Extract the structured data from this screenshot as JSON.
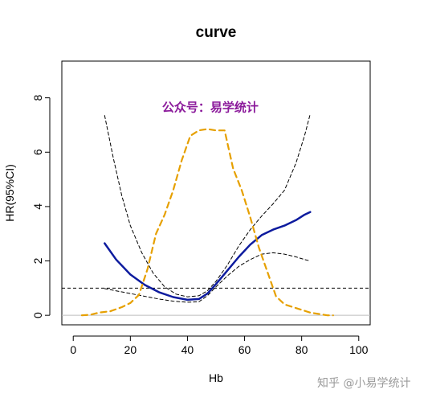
{
  "chart_data": {
    "type": "line",
    "title": "curve",
    "xlabel": "Hb",
    "ylabel": "HR(95%CI)",
    "xlim": [
      -4,
      104
    ],
    "ylim": [
      -0.35,
      9.35
    ],
    "x_ticks": [
      0,
      20,
      40,
      60,
      80,
      100
    ],
    "y_ticks": [
      0,
      2,
      4,
      6,
      8
    ],
    "reference_line": {
      "y": 1,
      "style": "dashed",
      "color": "#000000"
    },
    "baseline": {
      "y": 0,
      "color": "#bebebe"
    },
    "annotation": {
      "text": "公众号：易学统计",
      "color": "#8b1a9b",
      "x": 48,
      "y": 7.5
    },
    "series": [
      {
        "style": "solid",
        "color": "#0d1b9e",
        "width": 2.5,
        "points": [
          [
            11,
            2.65
          ],
          [
            15,
            2.05
          ],
          [
            20,
            1.5
          ],
          [
            25,
            1.12
          ],
          [
            30,
            0.85
          ],
          [
            35,
            0.67
          ],
          [
            40,
            0.57
          ],
          [
            44,
            0.6
          ],
          [
            47,
            0.8
          ],
          [
            50,
            1.15
          ],
          [
            54,
            1.65
          ],
          [
            58,
            2.15
          ],
          [
            62,
            2.6
          ],
          [
            66,
            2.95
          ],
          [
            70,
            3.15
          ],
          [
            74,
            3.3
          ],
          [
            78,
            3.5
          ],
          [
            81,
            3.7
          ],
          [
            83,
            3.8
          ]
        ]
      },
      {
        "style": "dashed",
        "color": "#000000",
        "width": 1,
        "points": [
          [
            11,
            7.35
          ],
          [
            14,
            5.8
          ],
          [
            17,
            4.4
          ],
          [
            20,
            3.3
          ],
          [
            24,
            2.3
          ],
          [
            28,
            1.55
          ],
          [
            32,
            1.05
          ],
          [
            36,
            0.78
          ],
          [
            40,
            0.68
          ],
          [
            44,
            0.72
          ],
          [
            47,
            0.9
          ],
          [
            50,
            1.25
          ],
          [
            54,
            1.85
          ],
          [
            58,
            2.55
          ],
          [
            62,
            3.15
          ],
          [
            66,
            3.65
          ],
          [
            70,
            4.1
          ],
          [
            74,
            4.6
          ],
          [
            78,
            5.6
          ],
          [
            81,
            6.6
          ],
          [
            83,
            7.4
          ]
        ]
      },
      {
        "style": "dashed",
        "color": "#000000",
        "width": 1,
        "points": [
          [
            11,
            0.98
          ],
          [
            15,
            0.9
          ],
          [
            20,
            0.8
          ],
          [
            25,
            0.7
          ],
          [
            30,
            0.6
          ],
          [
            35,
            0.52
          ],
          [
            40,
            0.48
          ],
          [
            44,
            0.5
          ],
          [
            47,
            0.72
          ],
          [
            50,
            1.05
          ],
          [
            54,
            1.45
          ],
          [
            58,
            1.8
          ],
          [
            62,
            2.05
          ],
          [
            66,
            2.25
          ],
          [
            70,
            2.3
          ],
          [
            74,
            2.25
          ],
          [
            78,
            2.15
          ],
          [
            81,
            2.05
          ],
          [
            83,
            2.0
          ]
        ]
      },
      {
        "style": "dashed",
        "color": "#e6a000",
        "width": 2.2,
        "points": [
          [
            3,
            0.0
          ],
          [
            6,
            0.02
          ],
          [
            9,
            0.1
          ],
          [
            13,
            0.15
          ],
          [
            17,
            0.3
          ],
          [
            20,
            0.45
          ],
          [
            23,
            0.75
          ],
          [
            26,
            1.7
          ],
          [
            29,
            3.0
          ],
          [
            32,
            3.7
          ],
          [
            35,
            4.6
          ],
          [
            38,
            5.7
          ],
          [
            41,
            6.6
          ],
          [
            44,
            6.8
          ],
          [
            47,
            6.85
          ],
          [
            50,
            6.8
          ],
          [
            53,
            6.8
          ],
          [
            56,
            5.4
          ],
          [
            59,
            4.6
          ],
          [
            62,
            3.6
          ],
          [
            65,
            2.5
          ],
          [
            68,
            1.6
          ],
          [
            71,
            0.7
          ],
          [
            74,
            0.4
          ],
          [
            77,
            0.3
          ],
          [
            80,
            0.2
          ],
          [
            83,
            0.1
          ],
          [
            86,
            0.05
          ],
          [
            89,
            0.0
          ],
          [
            91,
            0.0
          ]
        ]
      }
    ]
  },
  "watermark": "知乎 @小易学统计"
}
